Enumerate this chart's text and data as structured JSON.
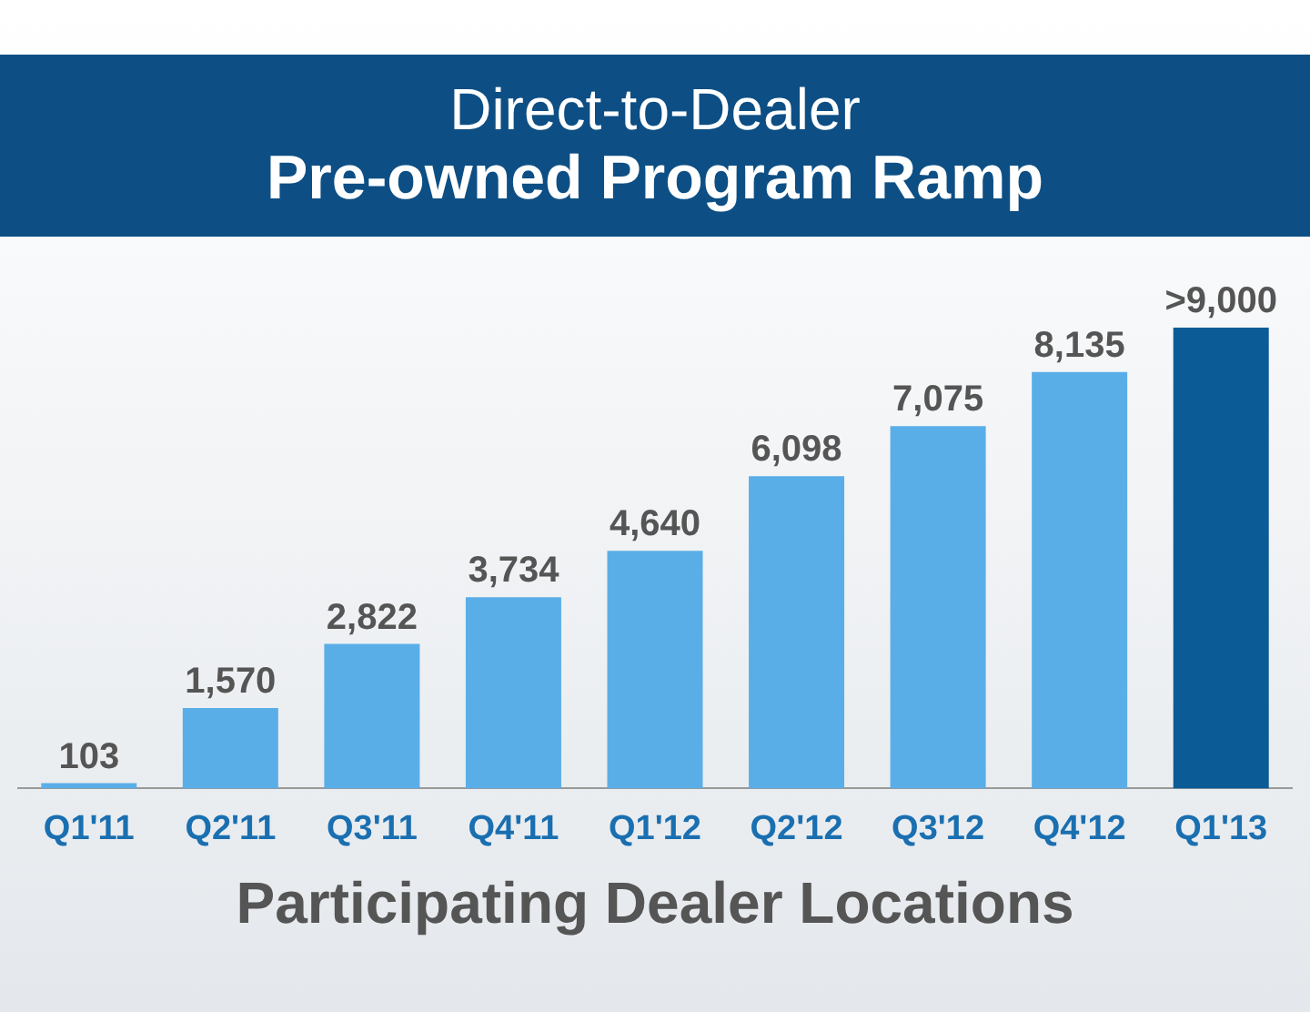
{
  "chart_data": {
    "type": "bar",
    "title": "Direct-to-Dealer",
    "subtitle": "Pre-owned Program Ramp",
    "xlabel": "Participating Dealer Locations",
    "categories": [
      "Q1'11",
      "Q2'11",
      "Q3'11",
      "Q4'11",
      "Q1'12",
      "Q2'12",
      "Q3'12",
      "Q4'12",
      "Q1'13"
    ],
    "values": [
      103,
      1570,
      2822,
      3734,
      4640,
      6098,
      7075,
      8135,
      9000
    ],
    "value_labels": [
      "103",
      "1,570",
      "2,822",
      "3,734",
      "4,640",
      "6,098",
      "7,075",
      "8,135",
      ">9,000"
    ],
    "colors": [
      "#5aaee8",
      "#5aaee8",
      "#5aaee8",
      "#5aaee8",
      "#5aaee8",
      "#5aaee8",
      "#5aaee8",
      "#5aaee8",
      "#0b5c96"
    ],
    "grid": false,
    "legend": false
  }
}
